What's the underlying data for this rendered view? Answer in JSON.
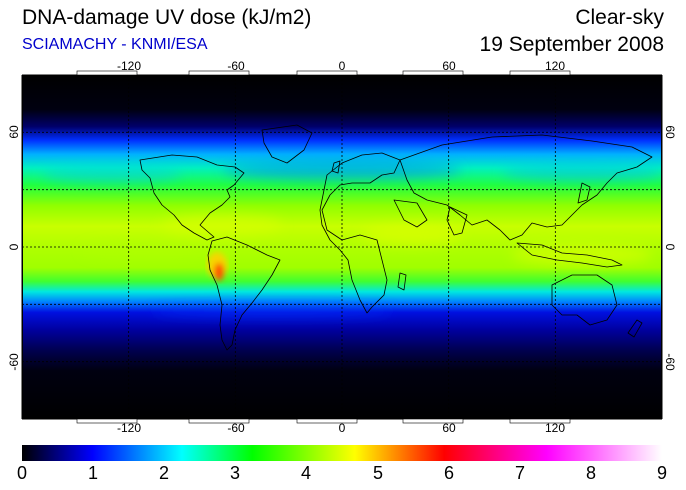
{
  "header": {
    "title": "DNA-damage UV dose (kJ/m2)",
    "subtitle": "SCIAMACHY - KNMI/ESA",
    "sky_condition": "Clear-sky",
    "date": "19 September 2008"
  },
  "map": {
    "projection": "equirectangular",
    "lon_range": [
      -180,
      180
    ],
    "lat_range": [
      -90,
      90
    ],
    "lon_ticks": [
      "-120",
      "-60",
      "0",
      "60",
      "120"
    ],
    "lat_ticks": [
      "60",
      "0",
      "-60"
    ],
    "gridlines": "dashed every 30 degrees",
    "background_color": "#000000",
    "coastline_color": "#000000"
  },
  "colorbar": {
    "min": 0,
    "max": 9,
    "labels": [
      "0",
      "1",
      "2",
      "3",
      "4",
      "5",
      "6",
      "7",
      "8",
      "9"
    ],
    "colors": [
      "#000000",
      "#0000ff",
      "#00ffff",
      "#00ff00",
      "#ffff00",
      "#ff0000",
      "#ff00ff",
      "#ffffff"
    ]
  }
}
